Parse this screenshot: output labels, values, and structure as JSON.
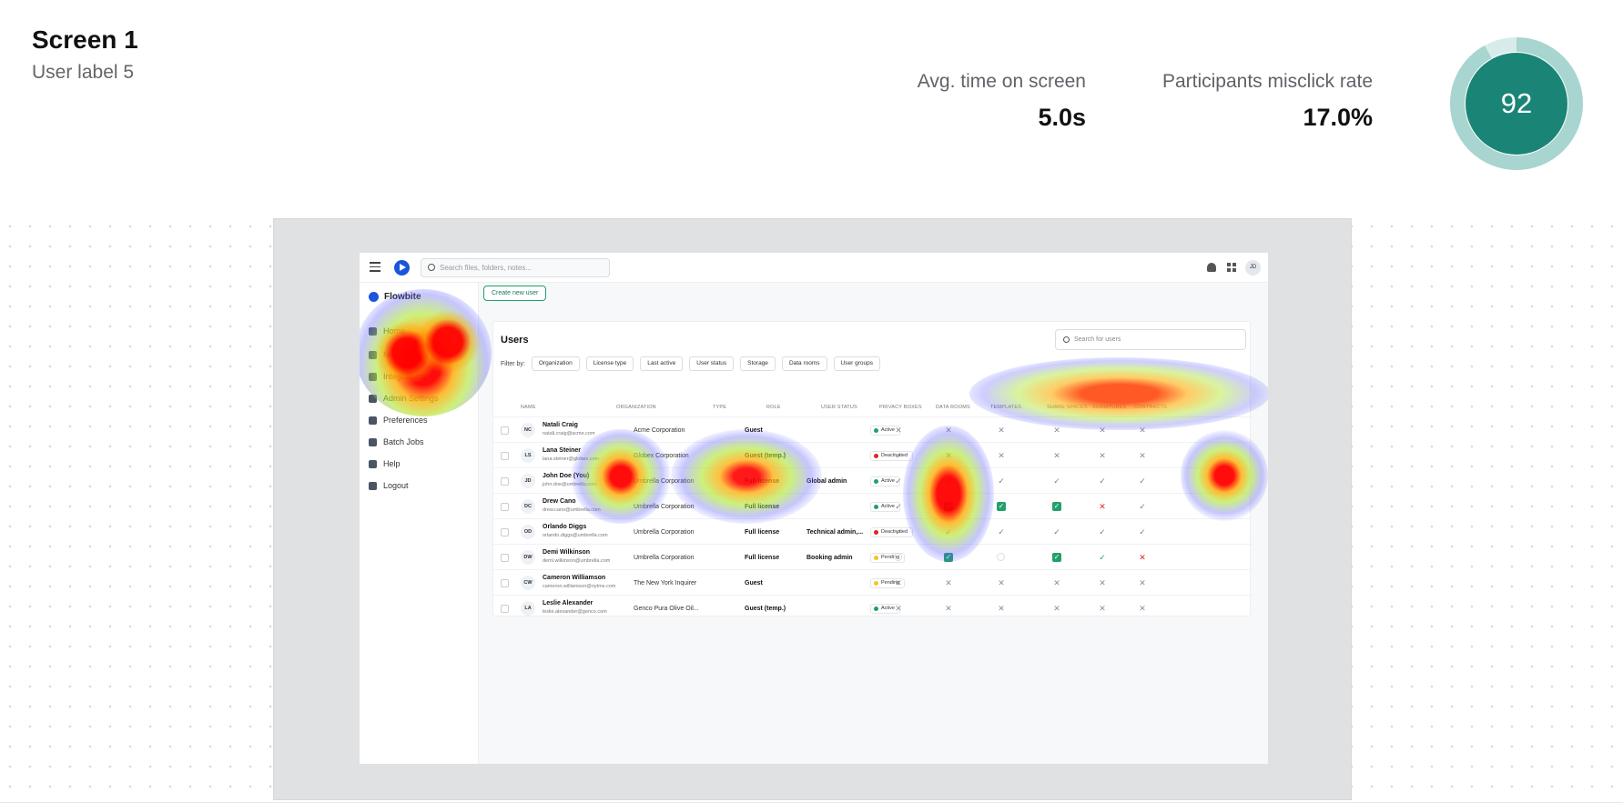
{
  "header": {
    "title": "Screen 1",
    "subtitle": "User label 5",
    "metrics": [
      {
        "label": "Avg. time on screen",
        "value": "5.0s"
      },
      {
        "label": "Participants misclick rate",
        "value": "17.0%"
      }
    ],
    "score": {
      "value": "92",
      "fraction": 0.92,
      "ring_color": "#a8d5d0",
      "fill_color": "#1a8576"
    }
  },
  "app": {
    "search_placeholder": "Search files, folders, notes...",
    "avatar_initials": "JD",
    "brand": "Flowbite",
    "create_button": "Create new user",
    "sidebar": [
      "Home",
      "Notifications",
      "Integrations",
      "Admin Settings",
      "Preferences",
      "Batch Jobs",
      "Help",
      "Logout"
    ],
    "card_title": "Users",
    "card_search_placeholder": "Search for users",
    "filter_label": "Filter by:",
    "filters": [
      "Organization",
      "License type",
      "Last active",
      "User status",
      "Storage",
      "Data rooms",
      "User groups"
    ],
    "columns": [
      "NAME",
      "ORGANIZATION",
      "TYPE",
      "ROLE",
      "USER STATUS",
      "PRIVACY BOXES",
      "DATA ROOMS",
      "TEMPLATES",
      "SHARE SPACES",
      "SIGNATURES",
      "CONTRACTS"
    ],
    "users": [
      {
        "initials": "NC",
        "name": "Natali Craig",
        "email": "natali.craig@acme.com",
        "org": "Acme Corporation",
        "type": "Guest",
        "role": "",
        "status": "Active",
        "status_color": "#22a06b",
        "perms": [
          "x",
          "x",
          "x",
          "x",
          "x",
          "x"
        ]
      },
      {
        "initials": "LS",
        "name": "Lana Steiner",
        "email": "lana.steiner@globex.com",
        "org": "Globex Corporation",
        "type": "Guest (temp.)",
        "role": "",
        "status": "Deactivated",
        "status_color": "#e02424",
        "perms": [
          "c",
          "x",
          "x",
          "x",
          "x",
          "x"
        ]
      },
      {
        "initials": "JD",
        "name": "John Doe (You)",
        "email": "john.doe@umbrella.com",
        "org": "Umbrella Corporation",
        "type": "Full license",
        "role": "Global admin",
        "status": "Active",
        "status_color": "#22a06b",
        "perms": [
          "c",
          "c",
          "c",
          "c",
          "c",
          "c"
        ]
      },
      {
        "initials": "DC",
        "name": "Drew Cano",
        "email": "drew.cano@umbrella.com",
        "org": "Umbrella Corporation",
        "type": "Full license",
        "role": "",
        "status": "Active",
        "status_color": "#22a06b",
        "perms": [
          "c",
          "b",
          "b",
          "b",
          "xr",
          "c"
        ]
      },
      {
        "initials": "OD",
        "name": "Orlando Diggs",
        "email": "orlando.diggs@umbrella.com",
        "org": "Umbrella Corporation",
        "type": "Full license",
        "role": "Technical admin,...",
        "status": "Deactivated",
        "status_color": "#e02424",
        "perms": [
          "c",
          "c",
          "c",
          "c",
          "c",
          "c"
        ]
      },
      {
        "initials": "DW",
        "name": "Demi Wilkinson",
        "email": "demi.wilkinson@umbrella.com",
        "org": "Umbrella Corporation",
        "type": "Full license",
        "role": "Booking admin",
        "status": "Pending",
        "status_color": "#f3c623",
        "perms": [
          "e",
          "b",
          "e",
          "b",
          "cr",
          "xr"
        ]
      },
      {
        "initials": "CW",
        "name": "Cameron Williamson",
        "email": "cameron.williamson@nytms.com",
        "org": "The New York Inquirer",
        "type": "Guest",
        "role": "",
        "status": "Pending",
        "status_color": "#f3c623",
        "perms": [
          "x",
          "x",
          "x",
          "x",
          "x",
          "x"
        ]
      },
      {
        "initials": "LA",
        "name": "Leslie Alexander",
        "email": "leslie.alexander@genco.com",
        "org": "Genco Pura Olive Oil...",
        "type": "Guest (temp.)",
        "role": "",
        "status": "Active",
        "status_color": "#22a06b",
        "perms": [
          "x",
          "x",
          "x",
          "x",
          "x",
          "x"
        ]
      }
    ]
  },
  "icons": {
    "search": "search-icon",
    "bell": "bell-icon",
    "apps": "apps-grid-icon",
    "menu": "hamburger-icon"
  }
}
